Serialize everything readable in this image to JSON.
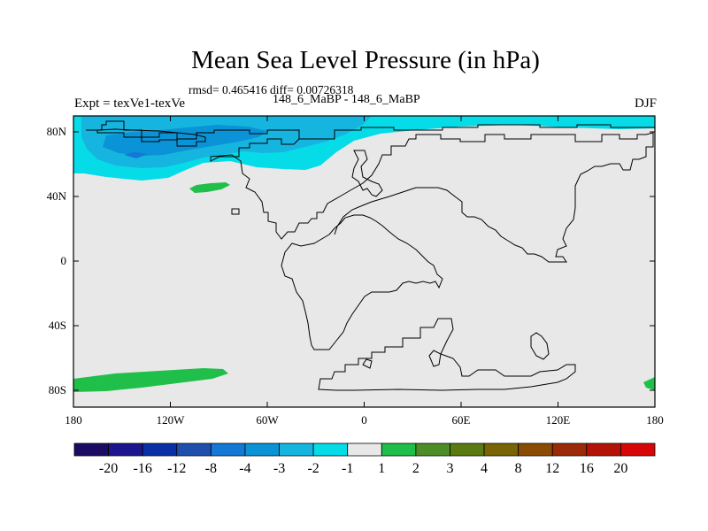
{
  "title": "Mean Sea Level Pressure (in hPa)",
  "stats": "rmsd= 0.465416 diff= 0.00726318",
  "experiment": "Expt = texVe1-texVe",
  "runs": "148_6_MaBP - 148_6_MaBP",
  "season": "DJF",
  "lat_ticks": [
    "80N",
    "40N",
    "0",
    "40S",
    "80S"
  ],
  "lon_ticks": [
    "180",
    "120W",
    "60W",
    "0",
    "60E",
    "120E",
    "180"
  ],
  "colorbar": {
    "labels": [
      "-20",
      "-16",
      "-12",
      "-8",
      "-4",
      "-3",
      "-2",
      "-1",
      "1",
      "2",
      "3",
      "4",
      "8",
      "12",
      "16",
      "20"
    ],
    "colors": [
      "#1c0b63",
      "#1d148f",
      "#0b2fa6",
      "#1f4fae",
      "#1378d6",
      "#0a93d6",
      "#16b5e0",
      "#05dce8",
      "#e8e8e8",
      "#1fbf4a",
      "#4d8d28",
      "#5a7a12",
      "#7a6506",
      "#8a4c04",
      "#9a2a08",
      "#b41408",
      "#d80606"
    ]
  },
  "map_colors": {
    "background": "#e8e8e8",
    "light_blue": "#05dce8",
    "mid_blue": "#16b5e0",
    "dark_blue": "#0a93d6",
    "deep_blue": "#1378d6",
    "green": "#1fbf4a"
  }
}
